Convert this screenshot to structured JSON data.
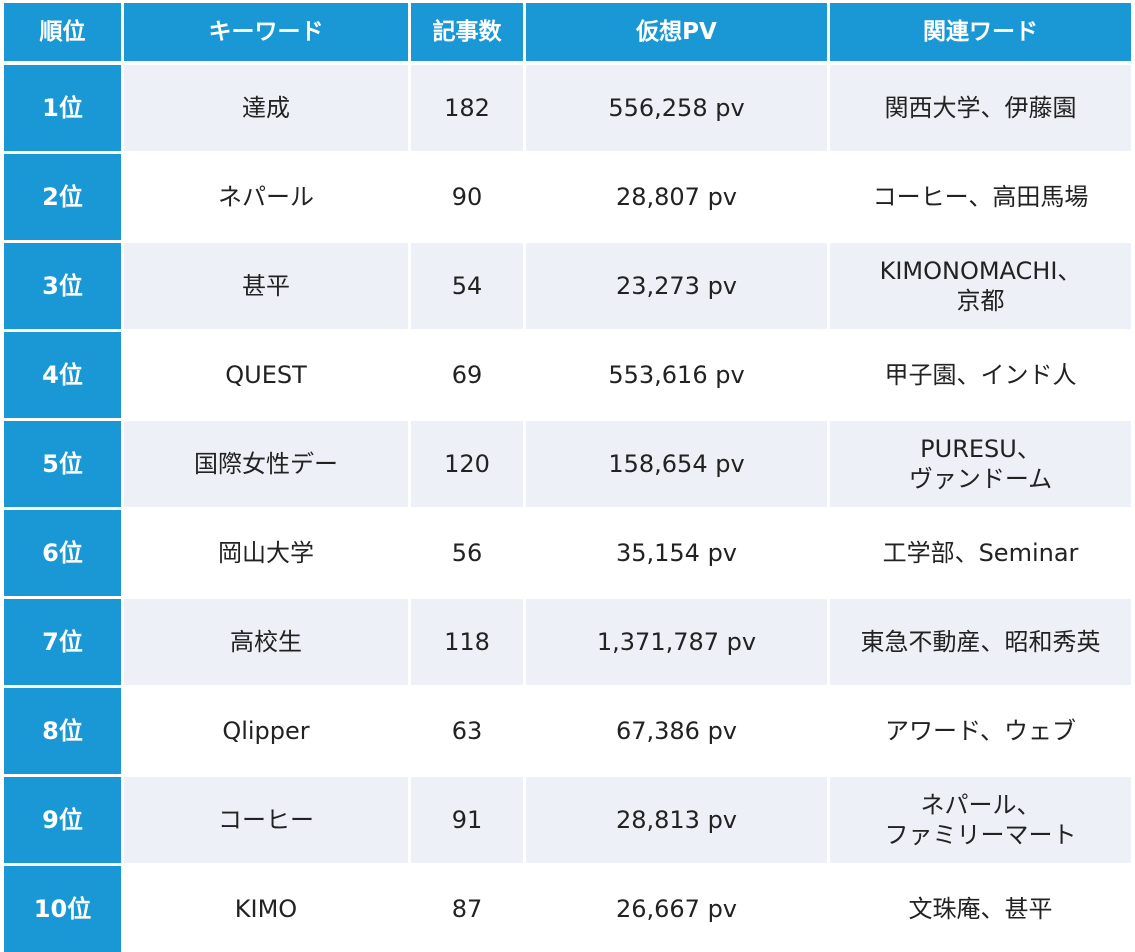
{
  "headers": {
    "rank": "順位",
    "keyword": "キーワード",
    "articles": "記事数",
    "pv": "仮想PV",
    "related": "関連ワード"
  },
  "rows": [
    {
      "rank": "1位",
      "keyword": "達成",
      "articles": "182",
      "pv": "556,258 pv",
      "related": "関西大学、伊藤園"
    },
    {
      "rank": "2位",
      "keyword": "ネパール",
      "articles": "90",
      "pv": "28,807 pv",
      "related": "コーヒー、高田馬場"
    },
    {
      "rank": "3位",
      "keyword": "甚平",
      "articles": "54",
      "pv": "23,273 pv",
      "related": "KIMONOMACHI、\n京都"
    },
    {
      "rank": "4位",
      "keyword": "QUEST",
      "articles": "69",
      "pv": "553,616 pv",
      "related": "甲子園、インド人"
    },
    {
      "rank": "5位",
      "keyword": "国際女性デー",
      "articles": "120",
      "pv": "158,654 pv",
      "related": "PURESU、\nヴァンドーム"
    },
    {
      "rank": "6位",
      "keyword": "岡山大学",
      "articles": "56",
      "pv": "35,154 pv",
      "related": "工学部、Seminar"
    },
    {
      "rank": "7位",
      "keyword": "高校生",
      "articles": "118",
      "pv": "1,371,787 pv",
      "related": "東急不動産、昭和秀英"
    },
    {
      "rank": "8位",
      "keyword": "Qlipper",
      "articles": "63",
      "pv": "67,386 pv",
      "related": "アワード、ウェブ"
    },
    {
      "rank": "9位",
      "keyword": "コーヒー",
      "articles": "91",
      "pv": "28,813 pv",
      "related": "ネパール、\nファミリーマート"
    },
    {
      "rank": "10位",
      "keyword": "KIMO",
      "articles": "87",
      "pv": "26,667 pv",
      "related": "文珠庵、甚平"
    }
  ],
  "colors": {
    "header_bg": "#1a98d5",
    "stripe_bg": "#eef0f7"
  }
}
